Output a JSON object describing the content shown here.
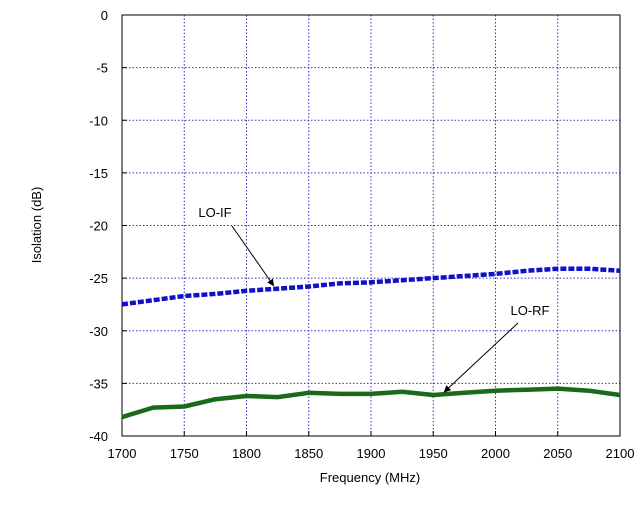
{
  "chart_data": {
    "type": "line",
    "title": "",
    "xlabel": "Frequency (MHz)",
    "ylabel": "Isolation (dB)",
    "xlim": [
      1700,
      2100
    ],
    "ylim": [
      -40,
      0
    ],
    "xticks": [
      1700,
      1750,
      1800,
      1850,
      1900,
      1950,
      2000,
      2050,
      2100
    ],
    "yticks": [
      0,
      -5,
      -10,
      -15,
      -20,
      -25,
      -30,
      -35,
      -40
    ],
    "grid": true,
    "legend": "none",
    "series": [
      {
        "name": "LO-IF",
        "color": "#1010c8",
        "style": "dashed",
        "x": [
          1700,
          1725,
          1750,
          1775,
          1800,
          1825,
          1850,
          1875,
          1900,
          1925,
          1950,
          1975,
          2000,
          2025,
          2050,
          2075,
          2100
        ],
        "y": [
          -27.5,
          -27.1,
          -26.7,
          -26.5,
          -26.2,
          -26.0,
          -25.8,
          -25.5,
          -25.4,
          -25.2,
          -25.0,
          -24.8,
          -24.6,
          -24.3,
          -24.1,
          -24.1,
          -24.3
        ]
      },
      {
        "name": "LO-RF",
        "color": "#1a6a1a",
        "style": "solid",
        "x": [
          1700,
          1725,
          1750,
          1775,
          1800,
          1825,
          1850,
          1875,
          1900,
          1925,
          1950,
          1975,
          2000,
          2025,
          2050,
          2075,
          2100
        ],
        "y": [
          -38.2,
          -37.3,
          -37.2,
          -36.5,
          -36.2,
          -36.3,
          -35.9,
          -36.0,
          -36.0,
          -35.8,
          -36.1,
          -35.9,
          -35.7,
          -35.6,
          -35.5,
          -35.7,
          -36.1
        ]
      }
    ],
    "annotations": [
      {
        "text": "LO-IF",
        "series": "LO-IF",
        "arrow_to": [
          1825,
          -26.0
        ]
      },
      {
        "text": "LO-RF",
        "series": "LO-RF",
        "arrow_to": [
          1962,
          -36.1
        ]
      }
    ]
  }
}
